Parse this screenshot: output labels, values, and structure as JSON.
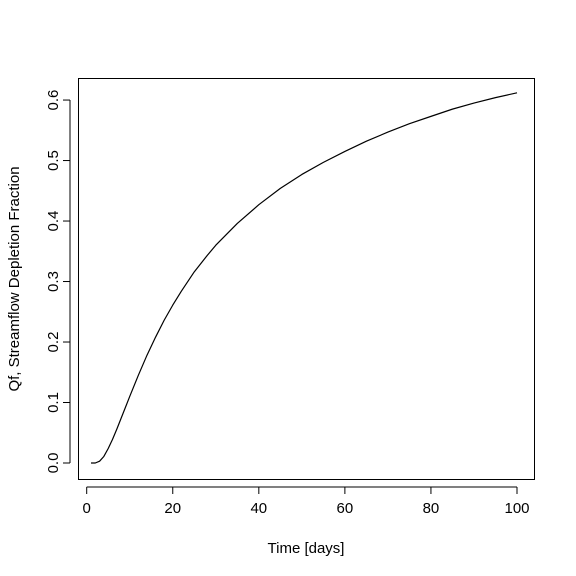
{
  "chart_data": {
    "type": "line",
    "title": "",
    "xlabel": "Time [days]",
    "ylabel": "Qf, Streamflow Depletion Fraction",
    "xlim": [
      1,
      100
    ],
    "ylim": [
      0.0,
      0.61
    ],
    "x_ticks": [
      0,
      20,
      40,
      60,
      80,
      100
    ],
    "x_tick_labels": [
      "0",
      "20",
      "40",
      "60",
      "80",
      "100"
    ],
    "y_ticks": [
      0.0,
      0.1,
      0.2,
      0.3,
      0.4,
      0.5,
      0.6
    ],
    "y_tick_labels": [
      "0.0",
      "0.1",
      "0.2",
      "0.3",
      "0.4",
      "0.5",
      "0.6"
    ],
    "grid": false,
    "series": [
      {
        "line_color": "#000000",
        "x": [
          1,
          2,
          3,
          4,
          5,
          6,
          7,
          8,
          9,
          10,
          12,
          14,
          16,
          18,
          20,
          22,
          25,
          28,
          30,
          35,
          40,
          45,
          50,
          55,
          60,
          65,
          70,
          75,
          80,
          85,
          90,
          95,
          100
        ],
        "y": [
          0.0,
          0.0,
          0.003,
          0.011,
          0.024,
          0.039,
          0.056,
          0.074,
          0.092,
          0.11,
          0.145,
          0.178,
          0.208,
          0.236,
          0.261,
          0.284,
          0.316,
          0.343,
          0.36,
          0.396,
          0.427,
          0.454,
          0.477,
          0.497,
          0.515,
          0.532,
          0.547,
          0.561,
          0.573,
          0.585,
          0.595,
          0.604,
          0.612
        ]
      }
    ]
  }
}
